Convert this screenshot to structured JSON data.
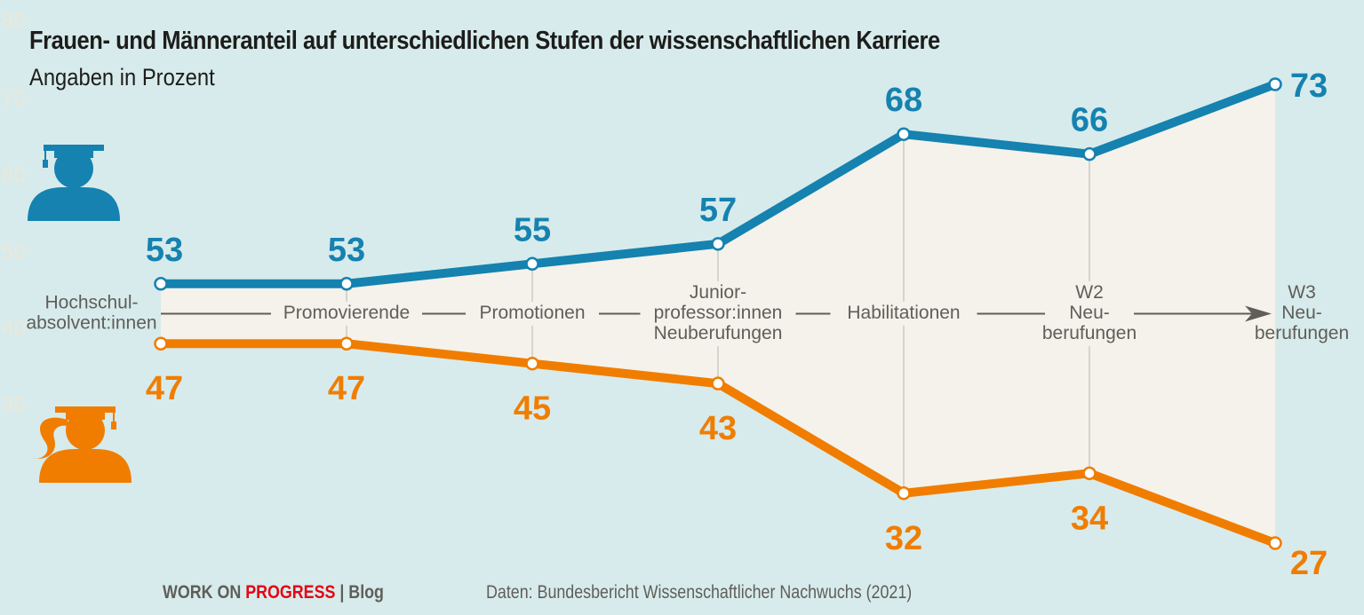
{
  "chart_data": {
    "type": "line",
    "title": "Frauen- und Männeranteil auf unterschiedlichen Stufen der wissenschaftlichen Karriere",
    "subtitle": "Angaben in Prozent",
    "categories": [
      [
        "Hochschul-",
        "absolvent:innen"
      ],
      [
        "Promovierende"
      ],
      [
        "Promotionen"
      ],
      [
        "Junior-",
        "professor:innen",
        "Neuberufungen"
      ],
      [
        "Habilitationen"
      ],
      [
        "W2",
        "Neu-",
        "berufungen"
      ],
      [
        "W3",
        "Neu-",
        "berufungen"
      ]
    ],
    "series": [
      {
        "icon": "male-graduate-icon",
        "color": "#1582b0",
        "values": [
          53,
          53,
          55,
          57,
          68,
          66,
          73
        ]
      },
      {
        "icon": "female-graduate-icon",
        "color": "#f07d00",
        "values": [
          47,
          47,
          45,
          43,
          32,
          34,
          27
        ]
      }
    ],
    "faint_ticks": [
      "80",
      "70",
      "60",
      "50",
      "40",
      "30"
    ],
    "ylim": [
      27,
      73
    ],
    "grid": false,
    "fill_between_color": "#f4f2ea"
  },
  "footer": {
    "brand_part1": "WORK ON ",
    "brand_part2": "PROGRESS",
    "brand_sep": " | ",
    "brand_part3": "Blog",
    "source": "Daten: Bundesbericht Wissenschaftlicher Nachwuchs (2021)"
  }
}
